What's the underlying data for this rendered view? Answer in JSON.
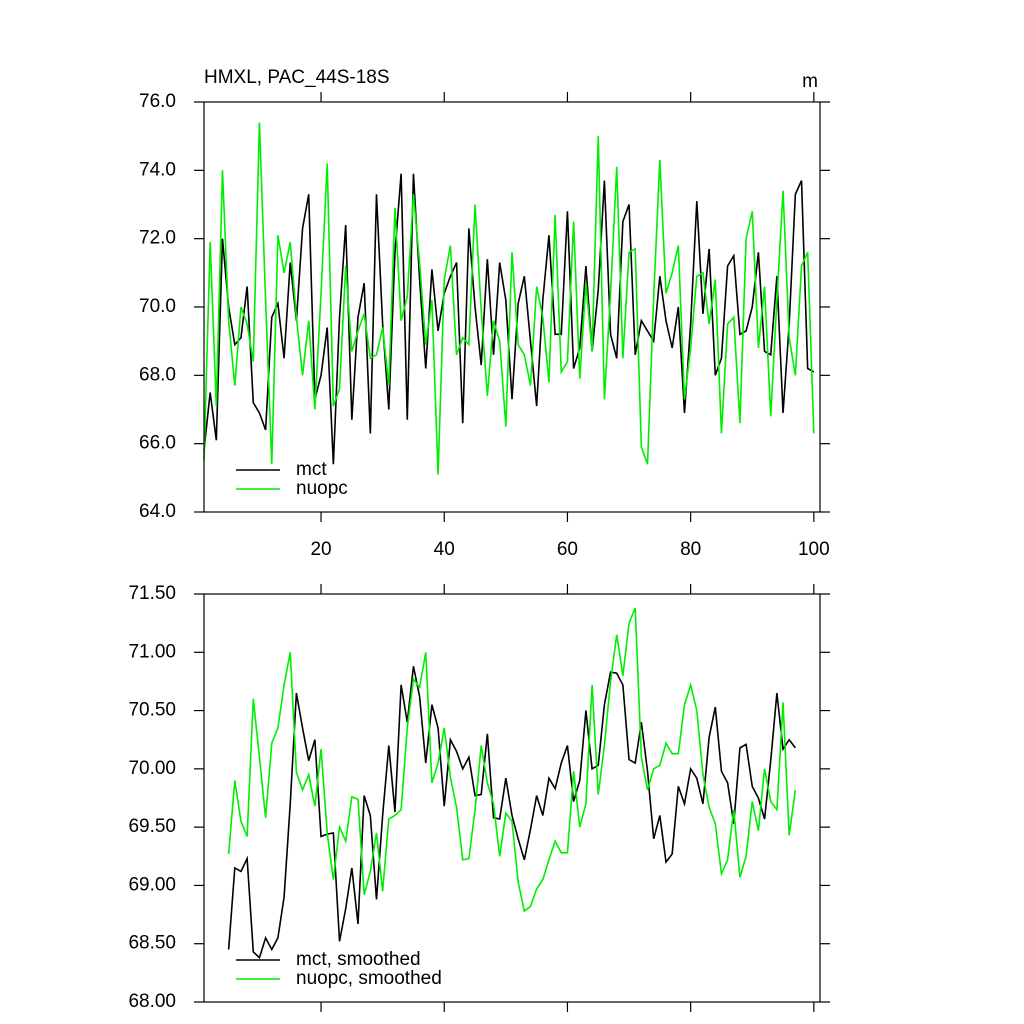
{
  "chart_data": [
    {
      "type": "line",
      "title": "HMXL, PAC_44S-18S",
      "units": "m",
      "x": [
        1,
        2,
        3,
        4,
        5,
        6,
        7,
        8,
        9,
        10,
        11,
        12,
        13,
        14,
        15,
        16,
        17,
        18,
        19,
        20,
        21,
        22,
        23,
        24,
        25,
        26,
        27,
        28,
        29,
        30,
        31,
        32,
        33,
        34,
        35,
        36,
        37,
        38,
        39,
        40,
        41,
        42,
        43,
        44,
        45,
        46,
        47,
        48,
        49,
        50,
        51,
        52,
        53,
        54,
        55,
        56,
        57,
        58,
        59,
        60,
        61,
        62,
        63,
        64,
        65,
        66,
        67,
        68,
        69,
        70,
        71,
        72,
        73,
        74,
        75,
        76,
        77,
        78,
        79,
        80,
        81,
        82,
        83,
        84,
        85,
        86,
        87,
        88,
        89,
        90,
        91,
        92,
        93,
        94,
        95,
        96,
        97,
        98,
        99,
        100
      ],
      "series": [
        {
          "name": "mct",
          "color": "#000000",
          "values": [
            65.8,
            67.5,
            66.1,
            72.0,
            70.0,
            68.9,
            69.1,
            70.6,
            67.2,
            66.9,
            66.4,
            69.7,
            70.1,
            68.5,
            71.3,
            69.6,
            72.3,
            73.3,
            67.3,
            68.0,
            69.4,
            65.4,
            69.7,
            72.4,
            66.7,
            69.7,
            70.7,
            66.3,
            73.3,
            69.5,
            67.0,
            71.6,
            73.9,
            66.7,
            73.9,
            70.8,
            68.2,
            71.1,
            69.3,
            70.4,
            70.9,
            71.3,
            66.6,
            72.3,
            70.0,
            68.3,
            71.4,
            68.6,
            71.3,
            70.2,
            67.3,
            70.1,
            70.9,
            69.0,
            67.1,
            70.2,
            72.1,
            69.2,
            69.2,
            72.8,
            68.2,
            68.8,
            71.2,
            68.7,
            70.5,
            73.7,
            69.2,
            68.5,
            72.5,
            73.0,
            68.6,
            69.6,
            69.3,
            69.0,
            70.9,
            69.6,
            68.8,
            70.0,
            66.9,
            69.5,
            73.1,
            69.8,
            71.7,
            68.0,
            68.5,
            71.2,
            71.5,
            69.2,
            69.3,
            70.0,
            71.6,
            68.7,
            68.6,
            70.9,
            66.9,
            69.5,
            73.3,
            73.7,
            68.2,
            68.1
          ]
        },
        {
          "name": "nuopc",
          "color": "#00ee00",
          "values": [
            65.5,
            71.9,
            67.1,
            74.0,
            69.6,
            67.7,
            70.0,
            69.5,
            68.4,
            75.4,
            70.2,
            65.4,
            72.1,
            71.0,
            71.9,
            69.7,
            68.0,
            69.6,
            67.0,
            70.4,
            74.2,
            67.1,
            67.6,
            71.2,
            68.7,
            69.3,
            69.8,
            68.5,
            68.6,
            69.4,
            67.7,
            72.9,
            69.6,
            70.3,
            73.3,
            71.3,
            68.9,
            70.2,
            65.1,
            70.8,
            71.8,
            68.6,
            69.1,
            68.9,
            73.0,
            69.9,
            67.4,
            69.6,
            69.0,
            66.5,
            71.6,
            68.9,
            68.6,
            67.7,
            70.6,
            69.7,
            67.8,
            72.7,
            68.1,
            68.4,
            72.5,
            67.9,
            70.7,
            68.7,
            75.0,
            67.3,
            70.4,
            74.1,
            68.5,
            71.6,
            71.7,
            65.9,
            65.4,
            70.3,
            74.3,
            70.4,
            71.0,
            71.8,
            67.3,
            68.8,
            70.9,
            71.0,
            69.5,
            70.8,
            66.3,
            69.5,
            69.7,
            66.6,
            72.0,
            72.8,
            68.8,
            70.6,
            66.8,
            70.2,
            73.4,
            69.1,
            68.0,
            71.2,
            71.6,
            66.3
          ]
        }
      ],
      "xlim": [
        1,
        101
      ],
      "xticks": [
        20,
        40,
        60,
        80,
        100
      ],
      "show_xtick_labels": true,
      "ylim": [
        64,
        76
      ],
      "yticks": [
        {
          "value": 64,
          "label": "64.0"
        },
        {
          "value": 66,
          "label": "66.0"
        },
        {
          "value": 68,
          "label": "68.0"
        },
        {
          "value": 70,
          "label": "70.0"
        },
        {
          "value": 72,
          "label": "72.0"
        },
        {
          "value": 74,
          "label": "74.0"
        },
        {
          "value": 76,
          "label": "76.0"
        }
      ],
      "legend": "lower left"
    },
    {
      "type": "line",
      "x": [
        5,
        6,
        7,
        8,
        9,
        10,
        11,
        12,
        13,
        14,
        15,
        16,
        17,
        18,
        19,
        20,
        21,
        22,
        23,
        24,
        25,
        26,
        27,
        28,
        29,
        30,
        31,
        32,
        33,
        34,
        35,
        36,
        37,
        38,
        39,
        40,
        41,
        42,
        43,
        44,
        45,
        46,
        47,
        48,
        49,
        50,
        51,
        52,
        53,
        54,
        55,
        56,
        57,
        58,
        59,
        60,
        61,
        62,
        63,
        64,
        65,
        66,
        67,
        68,
        69,
        70,
        71,
        72,
        73,
        74,
        75,
        76,
        77,
        78,
        79,
        80,
        81,
        82,
        83,
        84,
        85,
        86,
        87,
        88,
        89,
        90,
        91,
        92,
        93,
        94,
        95,
        96,
        97
      ],
      "series": [
        {
          "name": "mct, smoothed",
          "color": "#000000",
          "values": [
            68.45,
            69.15,
            69.12,
            69.23,
            68.43,
            68.38,
            68.55,
            68.45,
            68.55,
            68.9,
            69.7,
            70.65,
            70.35,
            70.07,
            70.25,
            69.42,
            69.44,
            69.45,
            68.52,
            68.8,
            69.15,
            68.67,
            69.77,
            69.6,
            68.88,
            69.6,
            70.2,
            69.63,
            70.72,
            70.4,
            70.88,
            70.62,
            70.05,
            70.55,
            70.35,
            69.68,
            70.25,
            70.15,
            70.0,
            70.1,
            69.77,
            69.78,
            70.3,
            69.58,
            69.57,
            69.92,
            69.6,
            69.4,
            69.22,
            69.48,
            69.77,
            69.6,
            69.92,
            69.83,
            70.05,
            70.2,
            69.72,
            69.9,
            70.5,
            70.0,
            70.03,
            70.55,
            70.83,
            70.82,
            70.72,
            70.08,
            70.05,
            70.4,
            69.98,
            69.4,
            69.6,
            69.2,
            69.27,
            69.85,
            69.7,
            70.0,
            69.92,
            69.7,
            70.27,
            70.53,
            69.98,
            69.88,
            69.53,
            70.18,
            70.21,
            69.85,
            69.75,
            69.57,
            70.07,
            70.65,
            70.17,
            70.25,
            70.18
          ]
        },
        {
          "name": "nuopc, smoothed",
          "color": "#00ee00",
          "values": [
            69.27,
            69.9,
            69.55,
            69.42,
            70.6,
            70.1,
            69.58,
            70.22,
            70.35,
            70.72,
            71.0,
            69.97,
            69.82,
            69.95,
            69.68,
            70.17,
            69.45,
            69.05,
            69.5,
            69.38,
            69.76,
            69.74,
            68.92,
            69.12,
            69.45,
            68.95,
            69.57,
            69.6,
            69.65,
            70.35,
            70.77,
            70.7,
            71.0,
            69.88,
            70.05,
            70.35,
            69.93,
            69.67,
            69.22,
            69.23,
            69.65,
            70.2,
            69.88,
            69.7,
            69.25,
            69.62,
            69.55,
            69.03,
            68.78,
            68.82,
            68.97,
            69.05,
            69.22,
            69.38,
            69.28,
            69.28,
            69.98,
            69.5,
            69.7,
            70.72,
            69.78,
            70.2,
            70.75,
            71.15,
            70.8,
            71.25,
            71.38,
            70.1,
            69.82,
            70.0,
            70.03,
            70.22,
            70.13,
            70.13,
            70.55,
            70.72,
            70.5,
            69.95,
            69.67,
            69.53,
            69.1,
            69.22,
            69.65,
            69.07,
            69.25,
            69.72,
            69.47,
            70.0,
            69.72,
            69.65,
            70.57,
            69.43,
            69.82
          ]
        }
      ],
      "xlim": [
        1,
        101
      ],
      "xticks": [
        20,
        40,
        60,
        80,
        100
      ],
      "show_xtick_labels": false,
      "ylim": [
        68,
        71.5
      ],
      "yticks": [
        {
          "value": 68,
          "label": "68.00"
        },
        {
          "value": 68.5,
          "label": "68.50"
        },
        {
          "value": 69,
          "label": "69.00"
        },
        {
          "value": 69.5,
          "label": "69.50"
        },
        {
          "value": 70,
          "label": "70.00"
        },
        {
          "value": 70.5,
          "label": "70.50"
        },
        {
          "value": 71,
          "label": "71.00"
        },
        {
          "value": 71.5,
          "label": "71.50"
        }
      ],
      "legend": "lower left"
    }
  ]
}
